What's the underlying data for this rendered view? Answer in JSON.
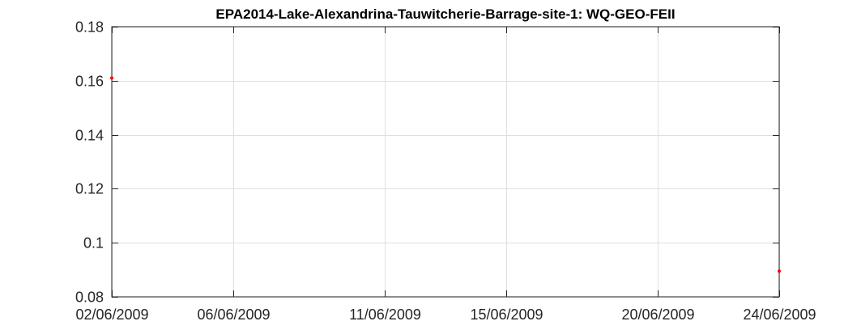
{
  "chart_data": {
    "type": "scatter",
    "title": "EPA2014-Lake-Alexandrina-Tauwitcherie-Barrage-site-1: WQ-GEO-FEII",
    "xlabel": "",
    "ylabel": "",
    "x_type": "date",
    "xlim": [
      "2009-06-02",
      "2009-06-24"
    ],
    "ylim": [
      0.08,
      0.18
    ],
    "x_ticks": [
      {
        "value": "2009-06-02",
        "label": "02/06/2009"
      },
      {
        "value": "2009-06-06",
        "label": "06/06/2009"
      },
      {
        "value": "2009-06-11",
        "label": "11/06/2009"
      },
      {
        "value": "2009-06-15",
        "label": "15/06/2009"
      },
      {
        "value": "2009-06-20",
        "label": "20/06/2009"
      },
      {
        "value": "2009-06-24",
        "label": "24/06/2009"
      }
    ],
    "y_ticks": [
      {
        "value": 0.08,
        "label": "0.08"
      },
      {
        "value": 0.1,
        "label": "0.1"
      },
      {
        "value": 0.12,
        "label": "0.12"
      },
      {
        "value": 0.14,
        "label": "0.14"
      },
      {
        "value": 0.16,
        "label": "0.16"
      },
      {
        "value": 0.18,
        "label": "0.18"
      }
    ],
    "grid": true,
    "series": [
      {
        "color": "#ff0000",
        "points": [
          {
            "x": "2009-06-02",
            "y": 0.161
          },
          {
            "x": "2009-06-24",
            "y": 0.0895
          }
        ]
      }
    ]
  }
}
